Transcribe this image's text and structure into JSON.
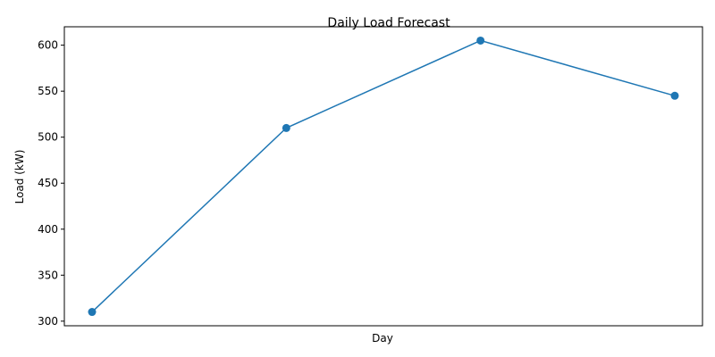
{
  "chart_data": {
    "type": "line",
    "title": "Daily Load Forecast",
    "xlabel": "Day",
    "ylabel": "Load (kW)",
    "x": [
      1,
      2,
      3,
      4
    ],
    "x_tick_labels_shown": false,
    "ylim": [
      295,
      620
    ],
    "yticks": [
      300,
      350,
      400,
      450,
      500,
      550,
      600
    ],
    "grid": false,
    "legend": "none",
    "series": [
      {
        "values": [
          310,
          510,
          605,
          545
        ],
        "color": "#1f77b4",
        "marker": "circle"
      }
    ]
  }
}
